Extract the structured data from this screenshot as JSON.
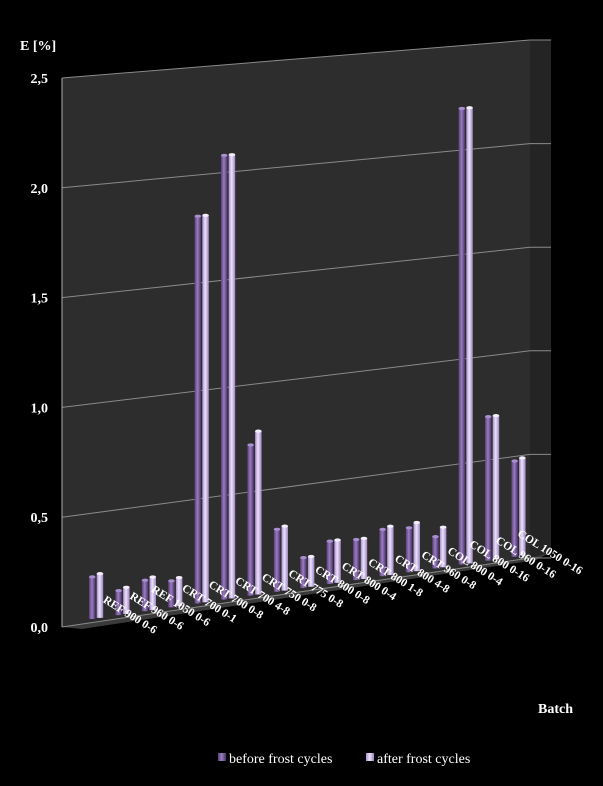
{
  "chart_data": {
    "type": "bar",
    "title": "",
    "ylabel": "E [%]",
    "xlabel": "Batch",
    "ylim": [
      0,
      2.5
    ],
    "yticks": [
      "0,0",
      "0,5",
      "1,0",
      "1,5",
      "2,0",
      "2,5"
    ],
    "grid": true,
    "legend_position": "bottom",
    "categories": [
      "REF 900 0-6",
      "REF 960 0-6",
      "REF 1050 0-6",
      "CRT 700 0-1",
      "CRT 700 0-8",
      "CRT 700 4-8",
      "CRT 750 0-8",
      "CRT 775 0-8",
      "CRT 800 0-8",
      "CRT 800 0-4",
      "CRT 800 1-8",
      "CRT 800 4-8",
      "CRT 960 0-8",
      "COL 800 0-4",
      "COL 800 0-16",
      "COL 960 0-16",
      "COL 1050 0-16"
    ],
    "series": [
      {
        "name": "before frost cycles",
        "values": [
          0.22,
          0.14,
          0.17,
          0.15,
          1.82,
          2.09,
          0.73,
          0.32,
          0.17,
          0.23,
          0.22,
          0.25,
          0.24,
          0.18,
          2.21,
          0.72,
          0.49
        ],
        "color": "#7E5E9C"
      },
      {
        "name": "after frost cycles",
        "values": [
          0.23,
          0.15,
          0.18,
          0.16,
          1.82,
          2.09,
          0.79,
          0.33,
          0.17,
          0.23,
          0.22,
          0.26,
          0.26,
          0.22,
          2.21,
          0.72,
          0.5
        ],
        "color": "#C8B4E6"
      }
    ]
  },
  "legend": {
    "items": [
      {
        "label": "before frost cycles"
      },
      {
        "label": "after frost cycles"
      }
    ]
  }
}
